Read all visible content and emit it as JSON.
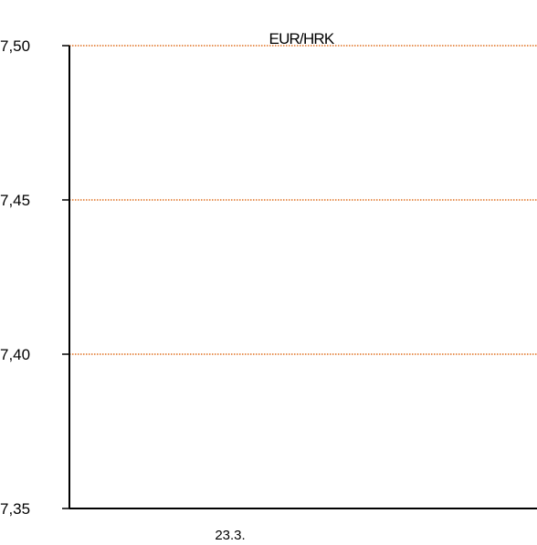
{
  "chart_data": {
    "type": "line",
    "title": "EUR/HRK",
    "xlabel": "",
    "ylabel": "",
    "categories": [
      "23.3."
    ],
    "series": [],
    "y_ticks": [
      "7,50",
      "7,45",
      "7,40",
      "7,35"
    ],
    "y_tick_values": [
      7.5,
      7.45,
      7.4,
      7.35
    ],
    "ylim": [
      7.35,
      7.5
    ],
    "grid": true,
    "legend": "none"
  },
  "colors": {
    "gridline": "#e07020",
    "axis": "#000000",
    "text": "#000000",
    "background": "#ffffff"
  }
}
